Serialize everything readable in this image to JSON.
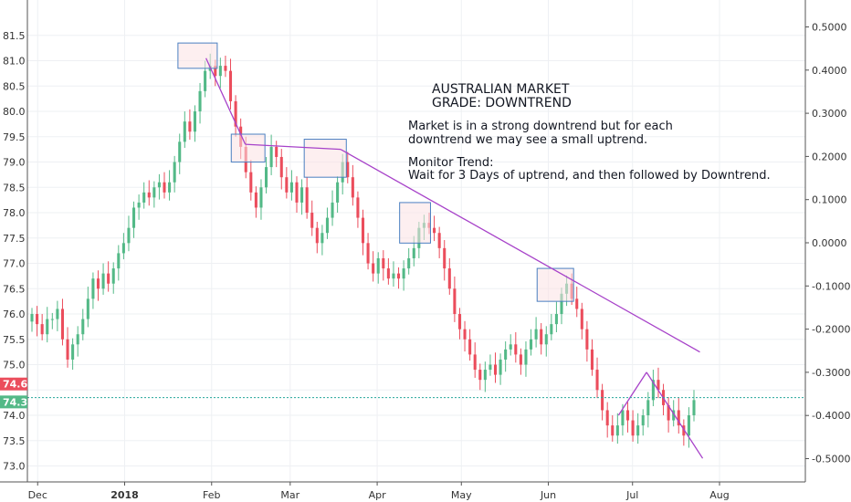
{
  "chart_data": {
    "type": "candlestick",
    "title": "",
    "xlabel": "",
    "ylabel": "",
    "grid": true,
    "colors": {
      "up": "#53b987",
      "down": "#eb4d5c",
      "trendline": "#a742c9",
      "box_fill": "#fbe1e3",
      "box_stroke": "#4a7fc1",
      "last_line": "#26a69a"
    },
    "y_left": {
      "ticks": [
        73.0,
        73.5,
        74.0,
        74.5,
        75.0,
        75.5,
        76.0,
        76.5,
        77.0,
        77.5,
        78.0,
        78.5,
        79.0,
        79.5,
        80.0,
        80.5,
        81.0,
        81.5
      ],
      "labels": [
        "73.0",
        "73.5",
        "74.0",
        "",
        "75.0",
        "75.5",
        "76.0",
        "76.5",
        "77.0",
        "77.5",
        "78.0",
        "78.5",
        "79.0",
        "79.5",
        "80.0",
        "80.5",
        "81.0",
        "81.5"
      ],
      "range": [
        72.75,
        81.75
      ]
    },
    "y_right": {
      "ticks": [
        -0.5,
        -0.4,
        -0.3,
        -0.2,
        -0.1,
        0.0,
        0.1,
        0.2,
        0.3,
        0.4,
        0.5
      ],
      "labels": [
        "-0.5000",
        "-0.4000",
        "-0.3000",
        "-0.2000",
        "-0.1000",
        "0.0000",
        "0.1000",
        "0.2000",
        "0.3000",
        "0.4000",
        "0.5000"
      ]
    },
    "x_ticks": [
      {
        "label": "Dec",
        "date": "2017-12-01",
        "bold": false
      },
      {
        "label": "2018",
        "date": "2018-01-01",
        "bold": true
      },
      {
        "label": "Feb",
        "date": "2018-02-01",
        "bold": false
      },
      {
        "label": "Mar",
        "date": "2018-03-01",
        "bold": false
      },
      {
        "label": "Apr",
        "date": "2018-04-01",
        "bold": false
      },
      {
        "label": "May",
        "date": "2018-05-01",
        "bold": false
      },
      {
        "label": "Jun",
        "date": "2018-06-01",
        "bold": false
      },
      {
        "label": "Jul",
        "date": "2018-07-01",
        "bold": false
      },
      {
        "label": "Aug",
        "date": "2018-08-01",
        "bold": false
      }
    ],
    "price_labels": [
      {
        "value": 74.6,
        "text": "74.6",
        "color": "#eb4d5c"
      },
      {
        "value": 74.3,
        "text": "74.3",
        "color": "#53b987"
      }
    ],
    "last_price_line": 74.35,
    "closes": [
      76.0,
      75.8,
      75.6,
      75.9,
      75.9,
      76.1,
      75.5,
      75.1,
      75.4,
      75.6,
      75.9,
      76.3,
      76.7,
      76.5,
      76.8,
      76.6,
      76.9,
      77.2,
      77.4,
      77.7,
      78.1,
      78.2,
      78.4,
      78.3,
      78.5,
      78.6,
      78.4,
      78.6,
      79.0,
      79.4,
      79.8,
      79.6,
      80.0,
      80.4,
      80.8,
      80.9,
      80.7,
      80.9,
      80.8,
      80.2,
      79.7,
      79.3,
      78.8,
      78.4,
      78.1,
      78.5,
      78.9,
      79.3,
      79.1,
      78.7,
      78.4,
      78.6,
      78.2,
      78.5,
      78.0,
      77.7,
      77.4,
      77.6,
      77.9,
      78.2,
      78.6,
      79.0,
      78.7,
      78.3,
      77.9,
      77.4,
      77.0,
      76.8,
      77.1,
      76.9,
      76.7,
      76.8,
      76.7,
      76.9,
      77.1,
      77.3,
      77.7,
      77.8,
      77.7,
      77.6,
      77.3,
      76.9,
      76.5,
      76.0,
      75.7,
      75.5,
      75.2,
      74.9,
      74.7,
      74.9,
      75.0,
      74.8,
      75.1,
      75.3,
      75.4,
      75.2,
      75.0,
      75.3,
      75.5,
      75.7,
      75.4,
      75.6,
      75.8,
      76.0,
      76.4,
      76.6,
      76.3,
      76.1,
      75.7,
      75.3,
      74.9,
      74.5,
      74.1,
      73.8,
      73.6,
      73.8,
      74.1,
      73.9,
      73.6,
      73.8,
      74.0,
      74.3,
      74.7,
      74.5,
      74.2,
      73.9,
      74.1,
      73.8,
      73.6,
      74.0,
      74.3
    ],
    "trendlines": [
      {
        "from": {
          "date": "2018-01-30",
          "value": 81.05
        },
        "to": {
          "date": "2018-02-13",
          "value": 79.35
        }
      },
      {
        "from": {
          "date": "2018-02-13",
          "value": 79.35
        },
        "to": {
          "date": "2018-03-19",
          "value": 79.25
        }
      },
      {
        "from": {
          "date": "2018-03-19",
          "value": 79.25
        },
        "to": {
          "date": "2018-07-25",
          "value": 75.25
        }
      },
      {
        "from": {
          "date": "2018-06-26",
          "value": 74.0
        },
        "to": {
          "date": "2018-07-06",
          "value": 74.85
        }
      },
      {
        "from": {
          "date": "2018-07-06",
          "value": 74.85
        },
        "to": {
          "date": "2018-07-26",
          "value": 73.15
        }
      }
    ],
    "boxes": [
      {
        "from": "2018-01-20",
        "to": "2018-02-03",
        "top": 81.35,
        "bottom": 80.85
      },
      {
        "from": "2018-02-08",
        "to": "2018-02-20",
        "top": 79.55,
        "bottom": 79.0
      },
      {
        "from": "2018-03-06",
        "to": "2018-03-21",
        "top": 79.45,
        "bottom": 78.7
      },
      {
        "from": "2018-04-09",
        "to": "2018-04-20",
        "top": 78.2,
        "bottom": 77.4
      },
      {
        "from": "2018-05-28",
        "to": "2018-06-10",
        "top": 76.9,
        "bottom": 76.25
      }
    ]
  },
  "annotations": {
    "title_line1": "AUSTRALIAN MARKET",
    "title_line2": "GRADE:  DOWNTREND",
    "body_line1": "Market is in a strong downtrend but for each",
    "body_line2": "downtrend we may see a small uptrend.",
    "body_line4": "Monitor Trend:",
    "body_line5": "Wait for 3 Days of uptrend, and then followed by Downtrend."
  }
}
